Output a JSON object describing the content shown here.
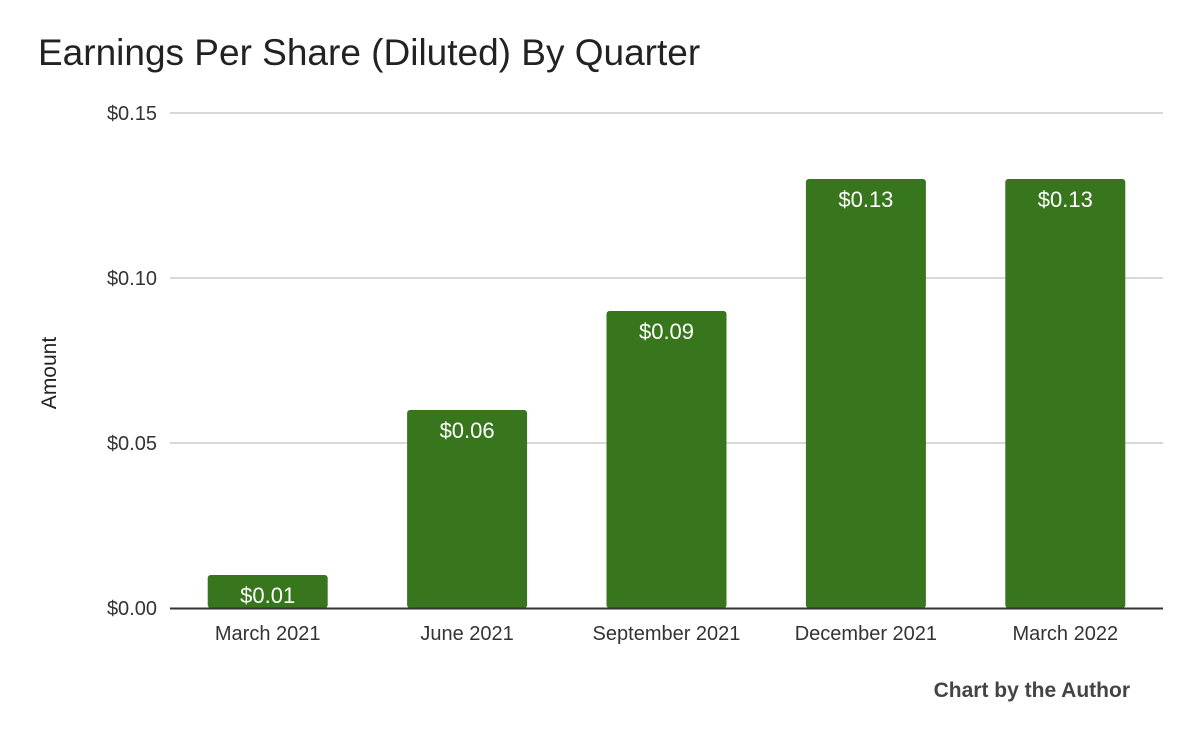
{
  "chart_data": {
    "type": "bar",
    "title": "Earnings Per Share (Diluted) By Quarter",
    "xlabel": "",
    "ylabel": "Amount",
    "categories": [
      "March 2021",
      "June 2021",
      "September 2021",
      "December 2021",
      "March 2022"
    ],
    "values": [
      0.01,
      0.06,
      0.09,
      0.13,
      0.13
    ],
    "data_labels": [
      "$0.01",
      "$0.06",
      "$0.09",
      "$0.13",
      "$0.13"
    ],
    "ylim": [
      0,
      0.15
    ],
    "yticks": [
      0,
      0.05,
      0.1,
      0.15
    ],
    "ytick_labels": [
      "$0.00",
      "$0.05",
      "$0.10",
      "$0.15"
    ],
    "grid": true,
    "legend": "none",
    "bar_color": "#38761d",
    "grid_color": "#cccccc",
    "axis_color": "#333333"
  },
  "footer": {
    "credit": "Chart by the Author"
  }
}
